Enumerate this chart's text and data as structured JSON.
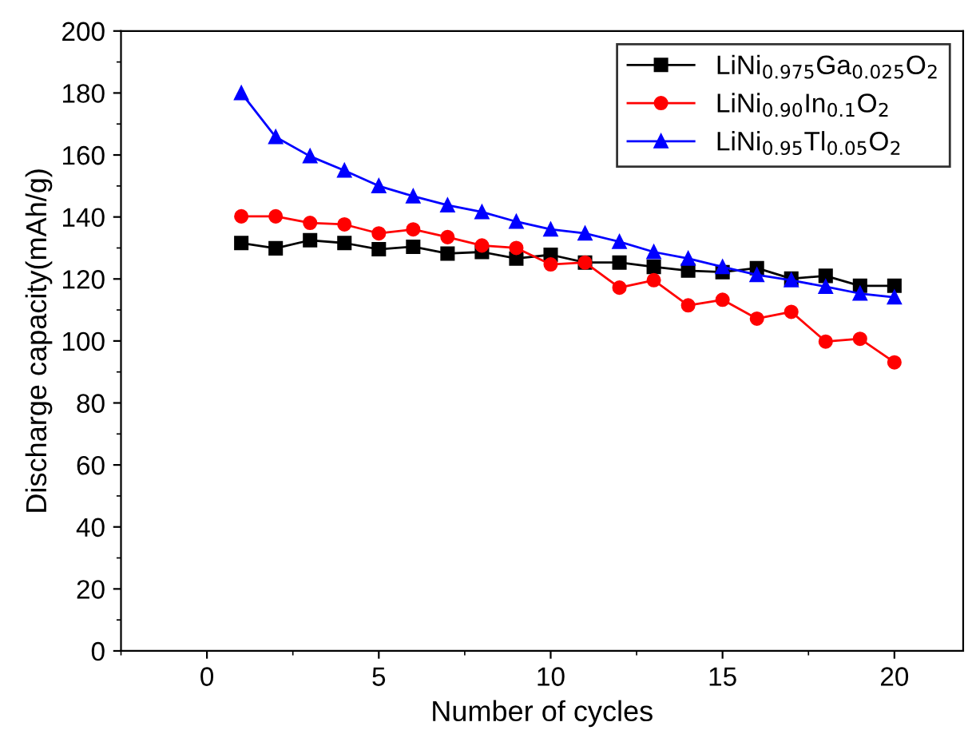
{
  "chart_data": {
    "type": "line",
    "xlabel": "Number of cycles",
    "ylabel": "Discharge capacity(mAh/g)",
    "x": [
      1,
      2,
      3,
      4,
      5,
      6,
      7,
      8,
      9,
      10,
      11,
      12,
      13,
      14,
      15,
      16,
      17,
      18,
      19,
      20
    ],
    "xlim": [
      -2.5,
      22
    ],
    "ylim": [
      0,
      200
    ],
    "xticks": [
      0,
      5,
      10,
      15,
      20
    ],
    "yticks": [
      0,
      20,
      40,
      60,
      80,
      100,
      120,
      140,
      160,
      180,
      200
    ],
    "grid": false,
    "legend": "top right",
    "line_style": "solid",
    "series": [
      {
        "name": "LiNi$_{0.975}$Ga$_{0.025}$O$_{2}$",
        "color": "#000000",
        "marker": "square",
        "values": [
          131.6,
          129.9,
          132.5,
          131.6,
          129.6,
          130.4,
          128.2,
          128.7,
          126.6,
          127.8,
          125.3,
          125.3,
          123.9,
          122.7,
          122.2,
          123.5,
          120.1,
          121,
          117.8,
          117.8
        ]
      },
      {
        "name": "LiNi$_{0.90}$In$_{0.1}$O$_{2}$",
        "color": "#ff0000",
        "marker": "circle",
        "values": [
          140.2,
          140.2,
          138.1,
          137.6,
          134.7,
          136,
          133.5,
          130.8,
          130,
          124.7,
          125.3,
          117.2,
          119.6,
          111.5,
          113.3,
          107.2,
          109.4,
          99.8,
          100.7,
          93.1
        ]
      },
      {
        "name": "LiNi$_{0.95}$Tl$_{0.05}$O$_{2}$",
        "color": "#0000ff",
        "marker": "triangle",
        "values": [
          180,
          165.8,
          159.6,
          155,
          150,
          146.7,
          143.8,
          141.6,
          138.5,
          136,
          134.7,
          132,
          128.7,
          126.6,
          123.9,
          121.3,
          119.6,
          117.5,
          115.3,
          114.1
        ]
      }
    ]
  }
}
